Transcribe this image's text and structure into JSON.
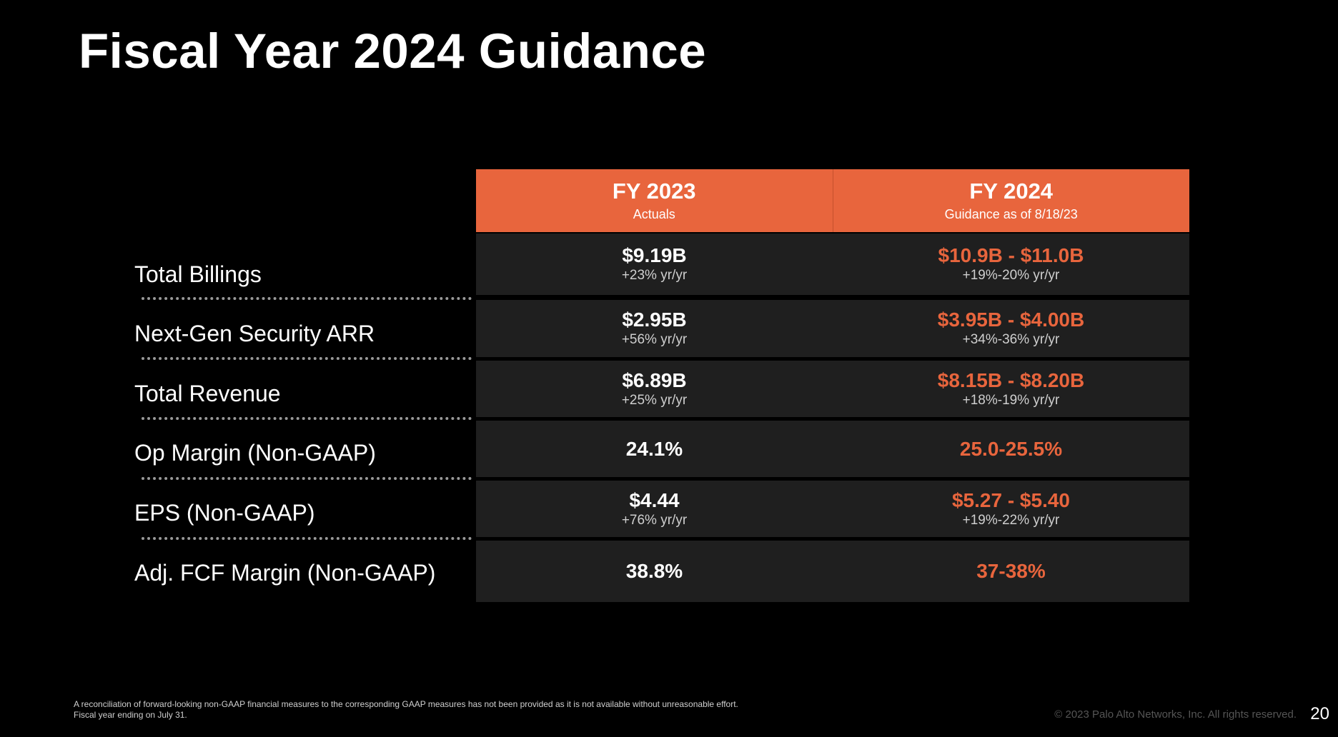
{
  "title": "Fiscal Year 2024 Guidance",
  "columns": [
    {
      "heading": "FY 2023",
      "subheading": "Actuals"
    },
    {
      "heading": "FY 2024",
      "subheading": "Guidance as of 8/18/23"
    }
  ],
  "rows": [
    {
      "label": "Total Billings",
      "fy2023": {
        "value": "$9.19B",
        "growth": "+23% yr/yr"
      },
      "fy2024": {
        "value": "$10.9B - $11.0B",
        "growth": "+19%-20% yr/yr"
      }
    },
    {
      "label": "Next-Gen Security ARR",
      "fy2023": {
        "value": "$2.95B",
        "growth": "+56% yr/yr"
      },
      "fy2024": {
        "value": "$3.95B - $4.00B",
        "growth": "+34%-36% yr/yr"
      }
    },
    {
      "label": "Total Revenue",
      "fy2023": {
        "value": "$6.89B",
        "growth": "+25% yr/yr"
      },
      "fy2024": {
        "value": "$8.15B - $8.20B",
        "growth": "+18%-19% yr/yr"
      }
    },
    {
      "label": "Op Margin (Non-GAAP)",
      "fy2023": {
        "value": "24.1%"
      },
      "fy2024": {
        "value": "25.0-25.5%"
      }
    },
    {
      "label": "EPS (Non-GAAP)",
      "fy2023": {
        "value": "$4.44",
        "growth": "+76% yr/yr"
      },
      "fy2024": {
        "value": "$5.27 - $5.40",
        "growth": "+19%-22% yr/yr"
      }
    },
    {
      "label": "Adj. FCF Margin (Non-GAAP)",
      "fy2023": {
        "value": "38.8%"
      },
      "fy2024": {
        "value": "37-38%"
      }
    }
  ],
  "footnote": {
    "line1": "A reconciliation of forward-looking non-GAAP financial measures to the corresponding GAAP measures has not been provided as it is not available without unreasonable effort.",
    "line2": "Fiscal year ending on July 31."
  },
  "copyright": "© 2023 Palo Alto Networks, Inc. All rights reserved.",
  "page_number": "20",
  "colors": {
    "accent": "#e8653d",
    "row_bg": "#1f1f1f",
    "background": "#000000"
  }
}
